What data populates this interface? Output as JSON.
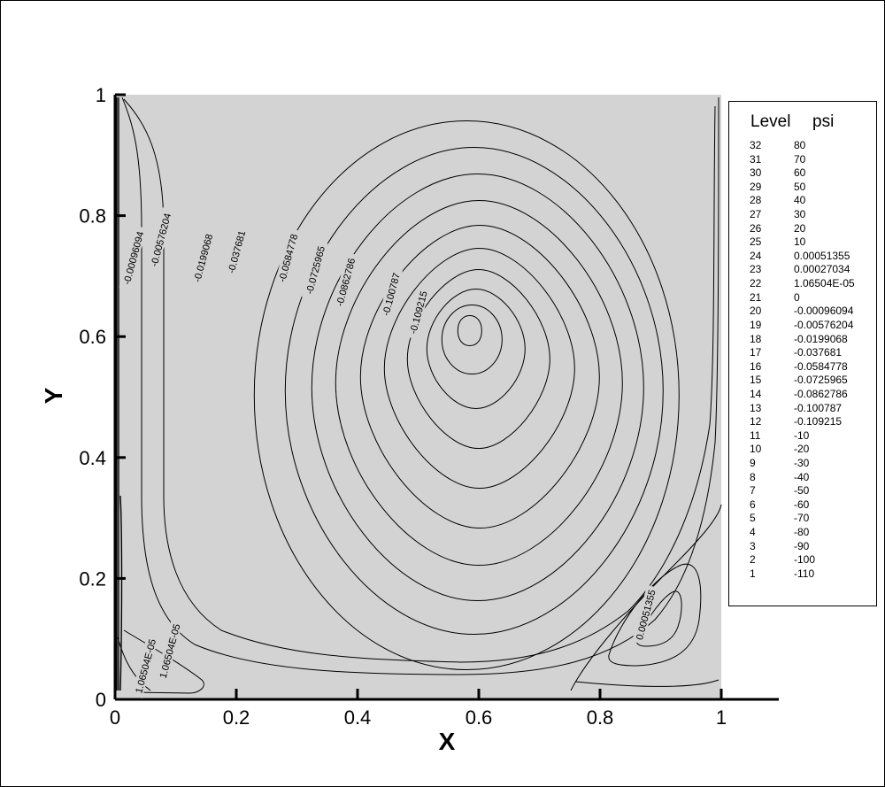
{
  "chart_data": {
    "type": "contour",
    "xlabel": "X",
    "ylabel": "Y",
    "xlim": [
      0,
      1.1
    ],
    "ylim": [
      0,
      1
    ],
    "x_ticks": [
      "0",
      "0.2",
      "0.4",
      "0.6",
      "0.8",
      "1"
    ],
    "y_ticks": [
      "0",
      "0.2",
      "0.4",
      "0.6",
      "0.8",
      "1"
    ],
    "background_color": "#d3d3d3",
    "line_color": "#000000",
    "grid": false,
    "primary_vortex_center": [
      0.58,
      0.62
    ],
    "contour_labels": [
      {
        "text": "-0.00096094",
        "x": 0.03,
        "y": 0.73
      },
      {
        "text": "-0.00576204",
        "x": 0.075,
        "y": 0.76
      },
      {
        "text": "-0.0199068",
        "x": 0.145,
        "y": 0.73
      },
      {
        "text": "-0.037681",
        "x": 0.2,
        "y": 0.74
      },
      {
        "text": "-0.0584778",
        "x": 0.285,
        "y": 0.73
      },
      {
        "text": "-0.0725965",
        "x": 0.33,
        "y": 0.71
      },
      {
        "text": "-0.0862786",
        "x": 0.38,
        "y": 0.69
      },
      {
        "text": "-0.100787",
        "x": 0.455,
        "y": 0.67
      },
      {
        "text": "-0.109215",
        "x": 0.5,
        "y": 0.64
      },
      {
        "text": "0.00051355",
        "x": 0.875,
        "y": 0.14
      },
      {
        "text": "1.06504E-05",
        "x": 0.09,
        "y": 0.08
      },
      {
        "text": "1.06504E-05",
        "x": 0.05,
        "y": 0.055
      }
    ]
  },
  "legend": {
    "header_level": "Level",
    "header_var": "psi",
    "entries": [
      {
        "level": "32",
        "value": "80"
      },
      {
        "level": "31",
        "value": "70"
      },
      {
        "level": "30",
        "value": "60"
      },
      {
        "level": "29",
        "value": "50"
      },
      {
        "level": "28",
        "value": "40"
      },
      {
        "level": "27",
        "value": "30"
      },
      {
        "level": "26",
        "value": "20"
      },
      {
        "level": "25",
        "value": "10"
      },
      {
        "level": "24",
        "value": "0.00051355"
      },
      {
        "level": "23",
        "value": "0.00027034"
      },
      {
        "level": "22",
        "value": "1.06504E-05"
      },
      {
        "level": "21",
        "value": "0"
      },
      {
        "level": "20",
        "value": "-0.00096094"
      },
      {
        "level": "19",
        "value": "-0.00576204"
      },
      {
        "level": "18",
        "value": "-0.0199068"
      },
      {
        "level": "17",
        "value": "-0.037681"
      },
      {
        "level": "16",
        "value": "-0.0584778"
      },
      {
        "level": "15",
        "value": "-0.0725965"
      },
      {
        "level": "14",
        "value": "-0.0862786"
      },
      {
        "level": "13",
        "value": "-0.100787"
      },
      {
        "level": "12",
        "value": "-0.109215"
      },
      {
        "level": "11",
        "value": "-10"
      },
      {
        "level": "10",
        "value": "-20"
      },
      {
        "level": "9",
        "value": "-30"
      },
      {
        "level": "8",
        "value": "-40"
      },
      {
        "level": "7",
        "value": "-50"
      },
      {
        "level": "6",
        "value": "-60"
      },
      {
        "level": "5",
        "value": "-70"
      },
      {
        "level": "4",
        "value": "-80"
      },
      {
        "level": "3",
        "value": "-90"
      },
      {
        "level": "2",
        "value": "-100"
      },
      {
        "level": "1",
        "value": "-110"
      }
    ]
  }
}
